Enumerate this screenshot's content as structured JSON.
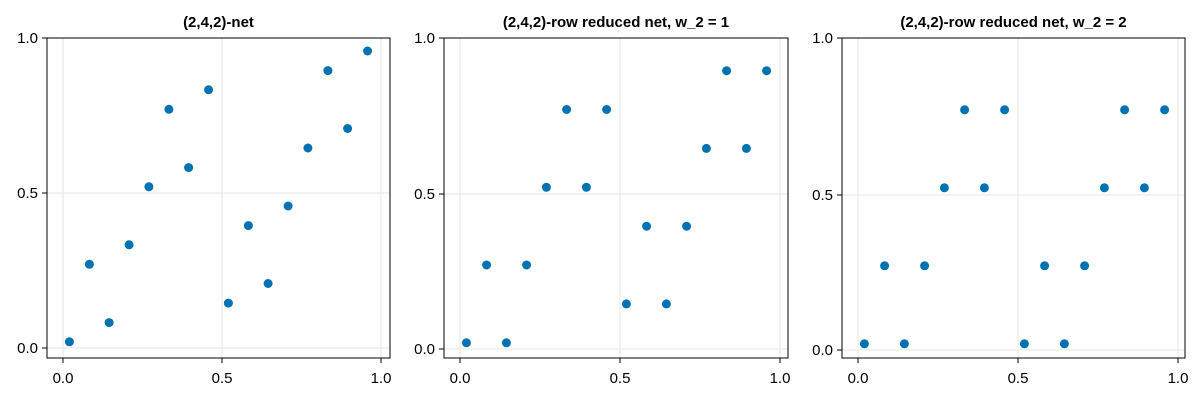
{
  "colors": {
    "marker": "#0072b2",
    "grid": "#e6e6e6"
  },
  "chart_data": [
    {
      "type": "scatter",
      "title": "(2,4,2)-net",
      "xlim": [
        0,
        1
      ],
      "ylim": [
        0,
        1
      ],
      "xticks": [
        "0.0",
        "0.5",
        "1.0"
      ],
      "yticks": [
        "0.0",
        "0.5",
        "1.0"
      ],
      "grid": true,
      "x": [
        0.02,
        0.083,
        0.145,
        0.208,
        0.27,
        0.333,
        0.395,
        0.458,
        0.52,
        0.583,
        0.645,
        0.708,
        0.77,
        0.833,
        0.895,
        0.958
      ],
      "y": [
        0.02,
        0.27,
        0.082,
        0.333,
        0.52,
        0.77,
        0.582,
        0.833,
        0.145,
        0.395,
        0.208,
        0.458,
        0.645,
        0.895,
        0.708,
        0.958
      ]
    },
    {
      "type": "scatter",
      "title": "(2,4,2)-row reduced net, w_2 = 1",
      "xlim": [
        0,
        1
      ],
      "ylim": [
        0,
        1
      ],
      "xticks": [
        "0.0",
        "0.5",
        "1.0"
      ],
      "yticks": [
        "0.0",
        "0.5",
        "1.0"
      ],
      "grid": true,
      "x": [
        0.02,
        0.083,
        0.145,
        0.208,
        0.27,
        0.333,
        0.395,
        0.458,
        0.52,
        0.583,
        0.645,
        0.708,
        0.77,
        0.833,
        0.895,
        0.958
      ],
      "y": [
        0.02,
        0.27,
        0.02,
        0.27,
        0.52,
        0.77,
        0.52,
        0.77,
        0.145,
        0.395,
        0.145,
        0.395,
        0.645,
        0.895,
        0.645,
        0.895
      ]
    },
    {
      "type": "scatter",
      "title": "(2,4,2)-row reduced net, w_2 = 2",
      "xlim": [
        0,
        1
      ],
      "ylim": [
        0,
        1
      ],
      "xticks": [
        "0.0",
        "0.5",
        "1.0"
      ],
      "yticks": [
        "0.0",
        "0.5",
        "1.0"
      ],
      "grid": true,
      "x": [
        0.02,
        0.083,
        0.145,
        0.208,
        0.27,
        0.333,
        0.395,
        0.458,
        0.52,
        0.583,
        0.645,
        0.708,
        0.77,
        0.833,
        0.895,
        0.958
      ],
      "y": [
        0.02,
        0.27,
        0.02,
        0.27,
        0.52,
        0.77,
        0.52,
        0.77,
        0.02,
        0.27,
        0.02,
        0.27,
        0.52,
        0.77,
        0.52,
        0.77
      ]
    }
  ]
}
